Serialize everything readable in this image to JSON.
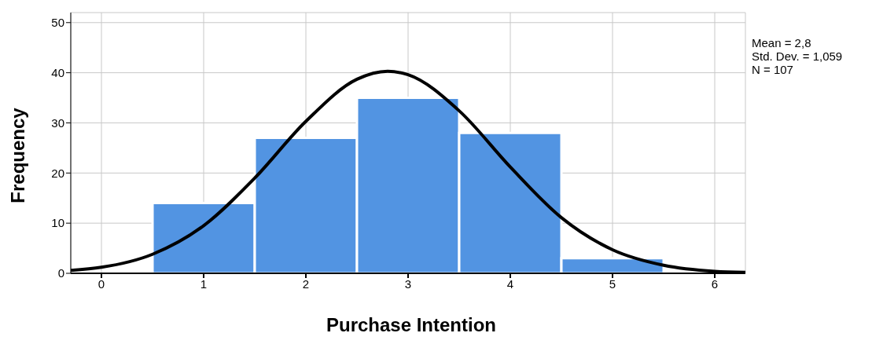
{
  "chart_data": {
    "type": "histogram",
    "xlabel": "Purchase Intention",
    "ylabel": "Frequency",
    "bins": [
      0.5,
      1.5,
      2.5,
      3.5,
      4.5,
      5.5
    ],
    "values": [
      14,
      27,
      35,
      28,
      3
    ],
    "color": "#5294e2",
    "series": [
      {
        "type": "line",
        "color": "#000000",
        "x": [
          -0.3,
          0,
          0.5,
          1,
          1.5,
          2,
          2.5,
          2.8,
          3,
          3.5,
          4,
          4.5,
          5,
          5.5,
          6,
          6.3
        ],
        "values": [
          0.6,
          1.2,
          3.8,
          9.5,
          19,
          30.3,
          38.7,
          40.3,
          39.6,
          32.4,
          21.2,
          11.1,
          4.7,
          1.6,
          0.4,
          0.2
        ]
      }
    ],
    "xlim": [
      -0.3,
      6.3
    ],
    "xticks": [
      0,
      1,
      2,
      3,
      4,
      5,
      6
    ],
    "ylim": [
      0,
      52
    ],
    "yticks": [
      0,
      10,
      20,
      30,
      40,
      50
    ],
    "grid": true,
    "annotations": [
      "Mean = 2,8",
      "Std. Dev. = 1,059",
      "N = 107"
    ]
  }
}
